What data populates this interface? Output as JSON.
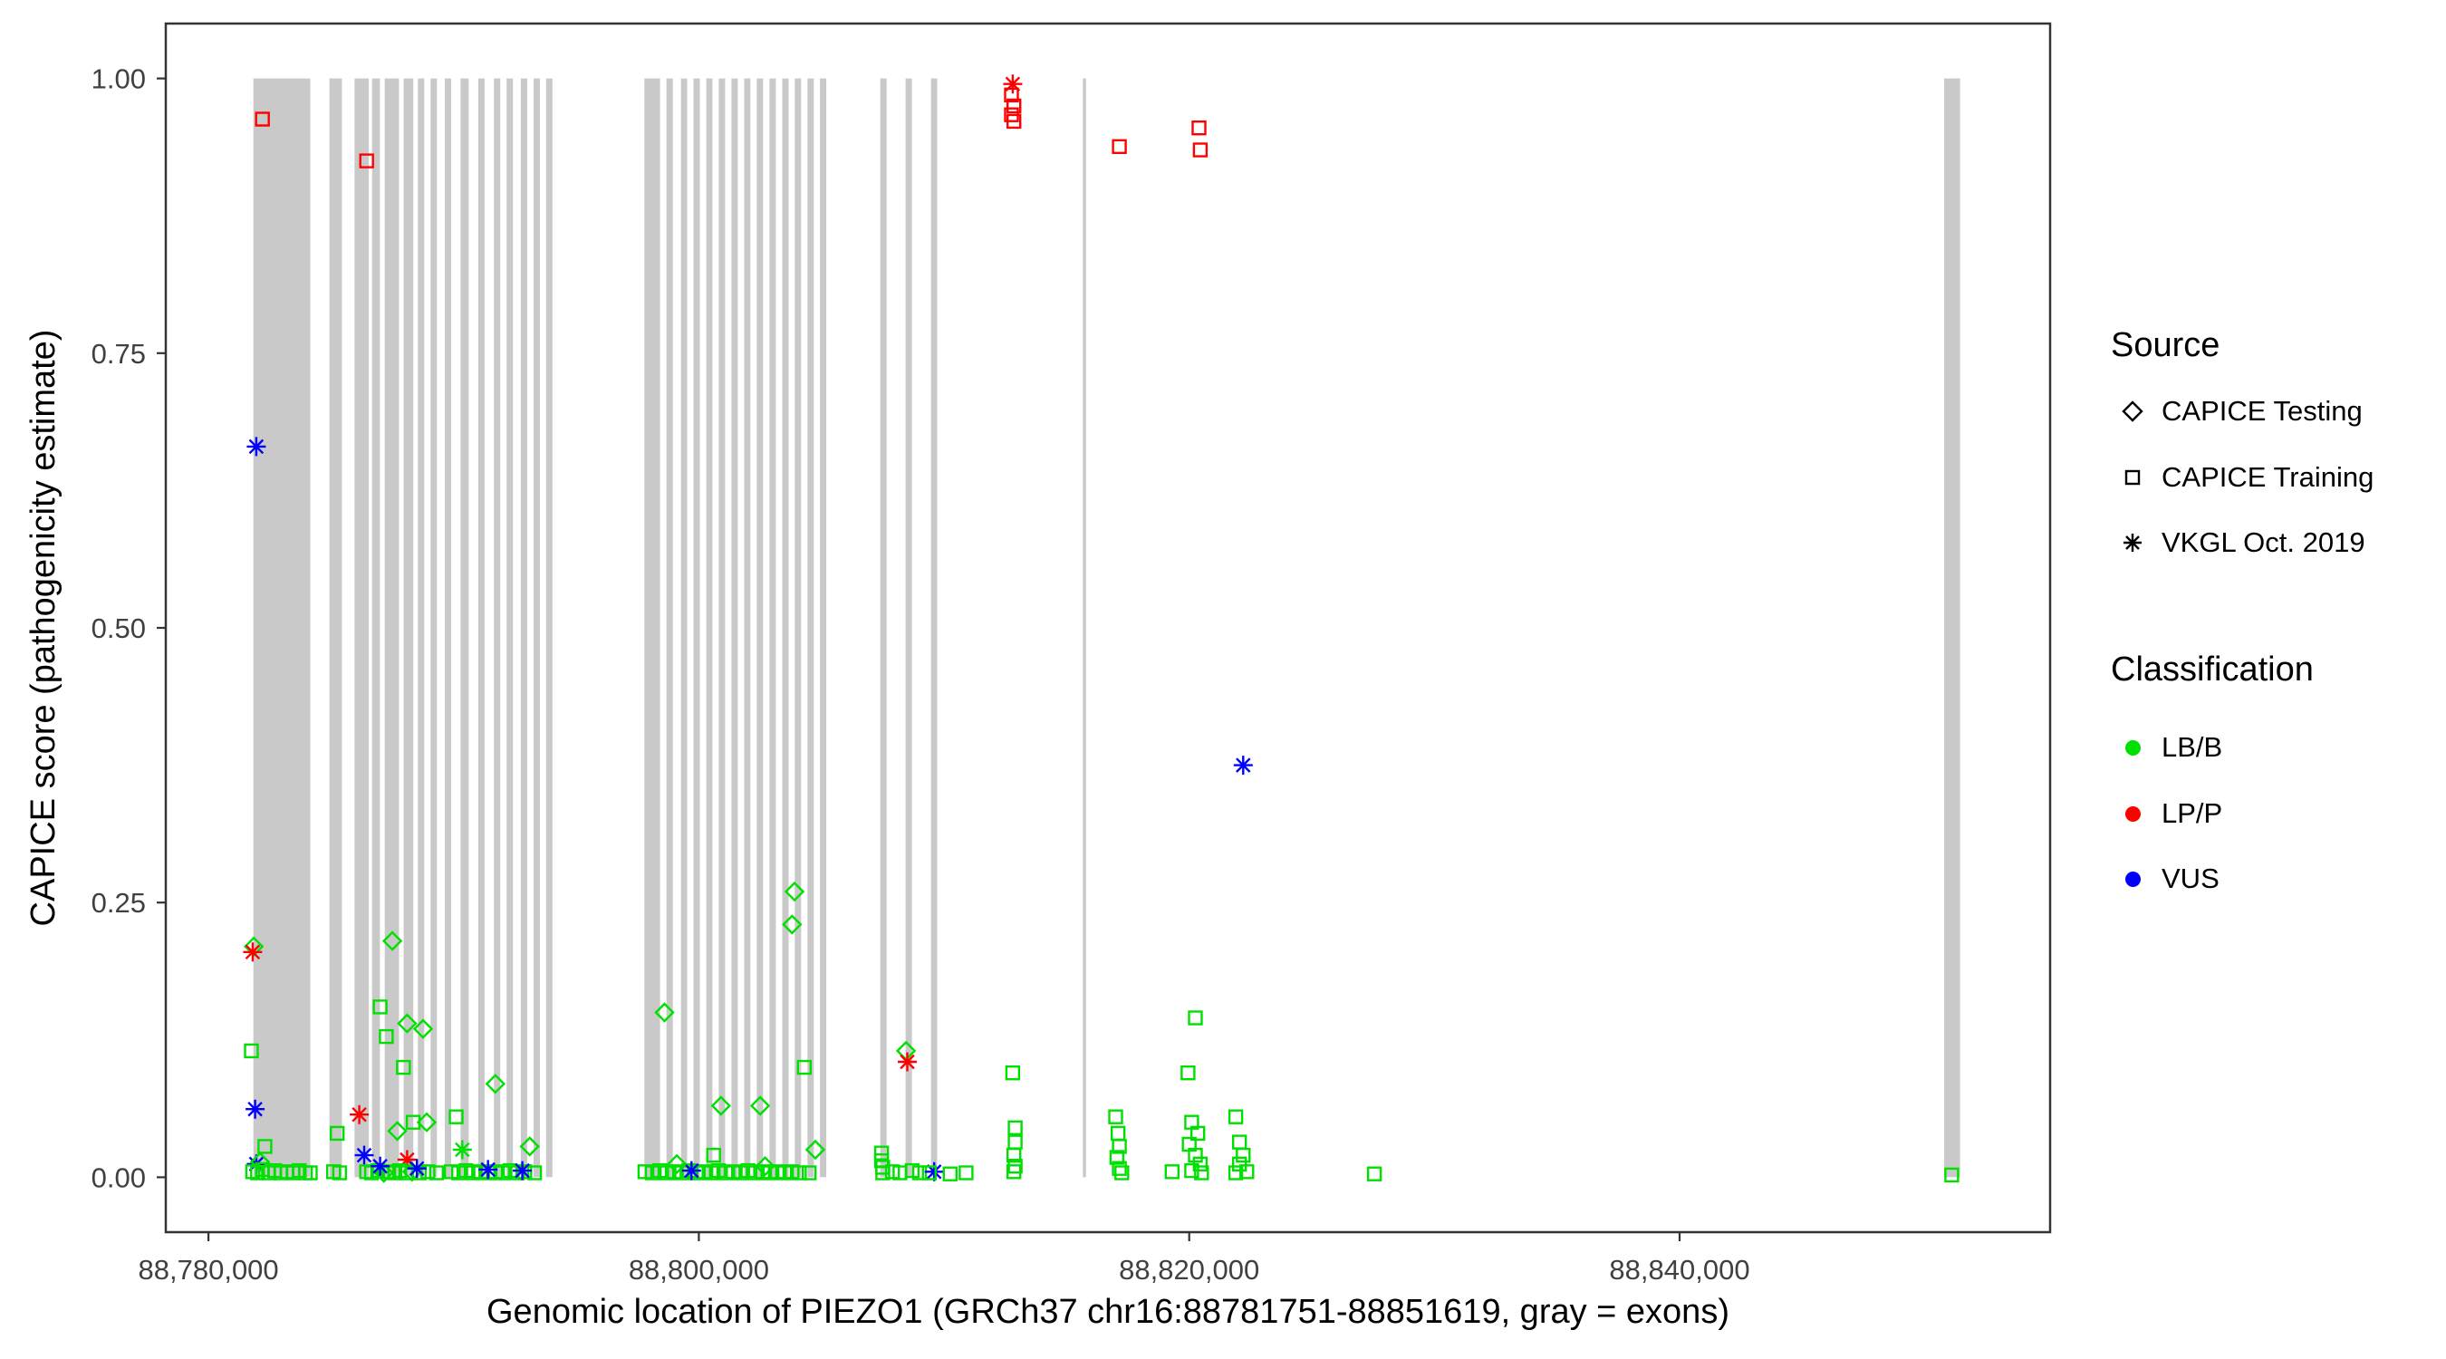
{
  "chart_data": {
    "type": "scatter",
    "title": "",
    "grid": false,
    "legend_position": "right",
    "x_axis": {
      "title": "Genomic location of PIEZO1 (GRCh37 chr16:88781751-88851619, gray = exons)",
      "domain": [
        88778258,
        88855112
      ],
      "ticks": [
        {
          "v": 88780000,
          "label": "88,780,000"
        },
        {
          "v": 88800000,
          "label": "88,800,000"
        },
        {
          "v": 88820000,
          "label": "88,820,000"
        },
        {
          "v": 88840000,
          "label": "88,840,000"
        }
      ]
    },
    "y_axis": {
      "title": "CAPICE score (pathogenicity estimate)",
      "domain": [
        -0.05,
        1.05
      ],
      "ticks": [
        {
          "v": 0,
          "label": "0.00"
        },
        {
          "v": 0.25,
          "label": "0.25"
        },
        {
          "v": 0.5,
          "label": "0.50"
        },
        {
          "v": 0.75,
          "label": "0.75"
        },
        {
          "v": 1,
          "label": "1.00"
        }
      ]
    },
    "legend": {
      "source": {
        "title": "Source",
        "items": [
          {
            "label": "CAPICE Testing",
            "shape": "diamond"
          },
          {
            "label": "CAPICE Training",
            "shape": "square"
          },
          {
            "label": "VKGL Oct. 2019",
            "shape": "asterisk"
          }
        ]
      },
      "classification": {
        "title": "Classification",
        "items": [
          {
            "label": "LB/B",
            "color": "#00E000"
          },
          {
            "label": "LP/P",
            "color": "#FF0000"
          },
          {
            "label": "VUS",
            "color": "#0000FF"
          }
        ]
      }
    },
    "colors": {
      "exon": "#C9C9C9",
      "panel_border": "#333333",
      "axis_text": "#404040",
      "classification": {
        "g": "#00E000",
        "r": "#FF0000",
        "b": "#0000FF"
      }
    },
    "point_format": "[genomic_position, capice_score, shape(d=diamond CAPICE Testing, s=square CAPICE Training, a=asterisk VKGL Oct. 2019), class(g=LB/B, r=LP/P, b=VUS)]",
    "points": [
      [
        88782200,
        0.963,
        "s",
        "r"
      ],
      [
        88781950,
        0.665,
        "a",
        "b"
      ],
      [
        88781850,
        0.21,
        "d",
        "g"
      ],
      [
        88781800,
        0.205,
        "a",
        "r"
      ],
      [
        88781750,
        0.115,
        "s",
        "g"
      ],
      [
        88781900,
        0.062,
        "a",
        "b"
      ],
      [
        88781950,
        0.012,
        "a",
        "b"
      ],
      [
        88781800,
        0.005,
        "s",
        "g"
      ],
      [
        88782000,
        0.004,
        "s",
        "g"
      ],
      [
        88782200,
        0.007,
        "s",
        "g"
      ],
      [
        88782450,
        0.004,
        "s",
        "g"
      ],
      [
        88782700,
        0.006,
        "s",
        "g"
      ],
      [
        88782950,
        0.004,
        "s",
        "g"
      ],
      [
        88783200,
        0.005,
        "s",
        "g"
      ],
      [
        88783450,
        0.004,
        "s",
        "g"
      ],
      [
        88783700,
        0.006,
        "s",
        "g"
      ],
      [
        88783950,
        0.004,
        "s",
        "g"
      ],
      [
        88782300,
        0.028,
        "s",
        "g"
      ],
      [
        88782100,
        0.014,
        "d",
        "g"
      ],
      [
        88784150,
        0.004,
        "s",
        "g"
      ],
      [
        88785100,
        0.005,
        "s",
        "g"
      ],
      [
        88785350,
        0.004,
        "s",
        "g"
      ],
      [
        88785250,
        0.04,
        "s",
        "g"
      ],
      [
        88786450,
        0.925,
        "s",
        "r"
      ],
      [
        88786150,
        0.057,
        "a",
        "r"
      ],
      [
        88786350,
        0.02,
        "a",
        "b"
      ],
      [
        88787000,
        0.155,
        "s",
        "g"
      ],
      [
        88787250,
        0.128,
        "s",
        "g"
      ],
      [
        88787500,
        0.215,
        "d",
        "g"
      ],
      [
        88787950,
        0.1,
        "s",
        "g"
      ],
      [
        88788100,
        0.14,
        "d",
        "g"
      ],
      [
        88788750,
        0.135,
        "d",
        "g"
      ],
      [
        88788100,
        0.016,
        "a",
        "r"
      ],
      [
        88787700,
        0.042,
        "d",
        "g"
      ],
      [
        88788900,
        0.05,
        "d",
        "g"
      ],
      [
        88788350,
        0.05,
        "s",
        "g"
      ],
      [
        88786450,
        0.005,
        "s",
        "g"
      ],
      [
        88786650,
        0.004,
        "s",
        "g"
      ],
      [
        88786900,
        0.006,
        "s",
        "g"
      ],
      [
        88787150,
        0.004,
        "d",
        "g"
      ],
      [
        88787350,
        0.005,
        "s",
        "g"
      ],
      [
        88787600,
        0.004,
        "s",
        "g"
      ],
      [
        88787800,
        0.006,
        "s",
        "g"
      ],
      [
        88788050,
        0.004,
        "s",
        "g"
      ],
      [
        88788300,
        0.005,
        "d",
        "g"
      ],
      [
        88788600,
        0.004,
        "s",
        "g"
      ],
      [
        88788950,
        0.005,
        "s",
        "g"
      ],
      [
        88789300,
        0.004,
        "s",
        "g"
      ],
      [
        88787000,
        0.01,
        "a",
        "b"
      ],
      [
        88788500,
        0.008,
        "a",
        "b"
      ],
      [
        88790100,
        0.055,
        "s",
        "g"
      ],
      [
        88790350,
        0.025,
        "a",
        "g"
      ],
      [
        88791700,
        0.085,
        "d",
        "g"
      ],
      [
        88789900,
        0.005,
        "s",
        "g"
      ],
      [
        88790200,
        0.004,
        "s",
        "g"
      ],
      [
        88790500,
        0.006,
        "s",
        "g"
      ],
      [
        88790800,
        0.004,
        "s",
        "g"
      ],
      [
        88791100,
        0.005,
        "s",
        "g"
      ],
      [
        88791400,
        0.004,
        "s",
        "g"
      ],
      [
        88791700,
        0.005,
        "s",
        "g"
      ],
      [
        88792000,
        0.004,
        "s",
        "g"
      ],
      [
        88792300,
        0.006,
        "s",
        "g"
      ],
      [
        88792600,
        0.004,
        "s",
        "g"
      ],
      [
        88792900,
        0.005,
        "s",
        "g"
      ],
      [
        88793300,
        0.004,
        "s",
        "g"
      ],
      [
        88791400,
        0.007,
        "a",
        "b"
      ],
      [
        88792800,
        0.006,
        "a",
        "b"
      ],
      [
        88793100,
        0.028,
        "d",
        "g"
      ],
      [
        88798600,
        0.15,
        "d",
        "g"
      ],
      [
        88800900,
        0.065,
        "d",
        "g"
      ],
      [
        88802500,
        0.065,
        "d",
        "g"
      ],
      [
        88803900,
        0.26,
        "d",
        "g"
      ],
      [
        88803800,
        0.23,
        "d",
        "g"
      ],
      [
        88804300,
        0.1,
        "s",
        "g"
      ],
      [
        88804750,
        0.025,
        "d",
        "g"
      ],
      [
        88797800,
        0.005,
        "s",
        "g"
      ],
      [
        88798100,
        0.004,
        "s",
        "g"
      ],
      [
        88798400,
        0.006,
        "s",
        "g"
      ],
      [
        88798700,
        0.004,
        "s",
        "g"
      ],
      [
        88799000,
        0.005,
        "s",
        "g"
      ],
      [
        88799300,
        0.004,
        "s",
        "g"
      ],
      [
        88799600,
        0.006,
        "s",
        "g"
      ],
      [
        88799900,
        0.004,
        "s",
        "g"
      ],
      [
        88800200,
        0.005,
        "s",
        "g"
      ],
      [
        88800500,
        0.004,
        "s",
        "g"
      ],
      [
        88800800,
        0.006,
        "s",
        "g"
      ],
      [
        88801100,
        0.004,
        "s",
        "g"
      ],
      [
        88801400,
        0.005,
        "s",
        "g"
      ],
      [
        88801700,
        0.004,
        "s",
        "g"
      ],
      [
        88802000,
        0.006,
        "s",
        "g"
      ],
      [
        88802300,
        0.004,
        "s",
        "g"
      ],
      [
        88802600,
        0.005,
        "s",
        "g"
      ],
      [
        88802900,
        0.004,
        "s",
        "g"
      ],
      [
        88803200,
        0.005,
        "s",
        "g"
      ],
      [
        88803500,
        0.004,
        "s",
        "g"
      ],
      [
        88803800,
        0.005,
        "s",
        "g"
      ],
      [
        88804100,
        0.004,
        "s",
        "g"
      ],
      [
        88799700,
        0.006,
        "a",
        "b"
      ],
      [
        88800600,
        0.02,
        "s",
        "g"
      ],
      [
        88799100,
        0.012,
        "d",
        "g"
      ],
      [
        88802700,
        0.01,
        "d",
        "g"
      ],
      [
        88804500,
        0.004,
        "s",
        "g"
      ],
      [
        88807450,
        0.022,
        "s",
        "g"
      ],
      [
        88807450,
        0.015,
        "s",
        "g"
      ],
      [
        88807500,
        0.009,
        "s",
        "g"
      ],
      [
        88807500,
        0.004,
        "s",
        "g"
      ],
      [
        88808450,
        0.115,
        "d",
        "g"
      ],
      [
        88808500,
        0.105,
        "a",
        "r"
      ],
      [
        88807900,
        0.005,
        "s",
        "g"
      ],
      [
        88808200,
        0.004,
        "s",
        "g"
      ],
      [
        88808700,
        0.006,
        "s",
        "g"
      ],
      [
        88809000,
        0.004,
        "s",
        "g"
      ],
      [
        88809600,
        0.005,
        "a",
        "b"
      ],
      [
        88809400,
        0.004,
        "s",
        "g"
      ],
      [
        88810250,
        0.003,
        "s",
        "g"
      ],
      [
        88810900,
        0.004,
        "s",
        "g"
      ],
      [
        88812800,
        0.995,
        "a",
        "r"
      ],
      [
        88812750,
        0.985,
        "s",
        "r"
      ],
      [
        88812850,
        0.975,
        "s",
        "r"
      ],
      [
        88812750,
        0.967,
        "s",
        "r"
      ],
      [
        88812850,
        0.961,
        "s",
        "r"
      ],
      [
        88812800,
        0.095,
        "s",
        "g"
      ],
      [
        88812900,
        0.045,
        "s",
        "g"
      ],
      [
        88812900,
        0.032,
        "s",
        "g"
      ],
      [
        88812850,
        0.02,
        "s",
        "g"
      ],
      [
        88812900,
        0.01,
        "s",
        "g"
      ],
      [
        88812850,
        0.005,
        "s",
        "g"
      ],
      [
        88817150,
        0.938,
        "s",
        "r"
      ],
      [
        88817000,
        0.055,
        "s",
        "g"
      ],
      [
        88817100,
        0.04,
        "s",
        "g"
      ],
      [
        88817150,
        0.028,
        "s",
        "g"
      ],
      [
        88817050,
        0.018,
        "s",
        "g"
      ],
      [
        88817150,
        0.008,
        "s",
        "g"
      ],
      [
        88817250,
        0.004,
        "s",
        "g"
      ],
      [
        88820400,
        0.955,
        "s",
        "r"
      ],
      [
        88820450,
        0.935,
        "s",
        "r"
      ],
      [
        88820250,
        0.145,
        "s",
        "g"
      ],
      [
        88819950,
        0.095,
        "s",
        "g"
      ],
      [
        88820100,
        0.05,
        "s",
        "g"
      ],
      [
        88820350,
        0.04,
        "s",
        "g"
      ],
      [
        88820000,
        0.03,
        "s",
        "g"
      ],
      [
        88820250,
        0.02,
        "s",
        "g"
      ],
      [
        88820450,
        0.012,
        "s",
        "g"
      ],
      [
        88820100,
        0.006,
        "s",
        "g"
      ],
      [
        88820500,
        0.004,
        "s",
        "g"
      ],
      [
        88819300,
        0.005,
        "s",
        "g"
      ],
      [
        88822200,
        0.375,
        "a",
        "b"
      ],
      [
        88821900,
        0.055,
        "s",
        "g"
      ],
      [
        88822050,
        0.032,
        "s",
        "g"
      ],
      [
        88822200,
        0.02,
        "s",
        "g"
      ],
      [
        88822050,
        0.012,
        "s",
        "g"
      ],
      [
        88822350,
        0.005,
        "s",
        "g"
      ],
      [
        88821900,
        0.004,
        "s",
        "g"
      ],
      [
        88827550,
        0.003,
        "s",
        "g"
      ],
      [
        88851100,
        0.002,
        "s",
        "g"
      ]
    ],
    "exons": [
      [
        88781830,
        88784150
      ],
      [
        88784930,
        88785440
      ],
      [
        88785960,
        88786540
      ],
      [
        88786670,
        88786990
      ],
      [
        88787190,
        88787770
      ],
      [
        88787960,
        88788350
      ],
      [
        88788540,
        88788800
      ],
      [
        88789060,
        88789320
      ],
      [
        88789640,
        88789900
      ],
      [
        88790280,
        88790610
      ],
      [
        88791000,
        88791260
      ],
      [
        88791640,
        88791900
      ],
      [
        88792160,
        88792420
      ],
      [
        88792740,
        88793000
      ],
      [
        88793260,
        88793520
      ],
      [
        88793770,
        88794030
      ],
      [
        88797780,
        88798420
      ],
      [
        88798680,
        88798940
      ],
      [
        88799270,
        88799520
      ],
      [
        88799780,
        88800040
      ],
      [
        88800300,
        88800550
      ],
      [
        88800810,
        88801070
      ],
      [
        88801330,
        88801590
      ],
      [
        88801850,
        88802100
      ],
      [
        88802360,
        88802620
      ],
      [
        88802880,
        88803140
      ],
      [
        88803400,
        88803660
      ],
      [
        88803910,
        88804170
      ],
      [
        88804430,
        88804690
      ],
      [
        88804940,
        88805200
      ],
      [
        88807400,
        88807660
      ],
      [
        88808430,
        88808690
      ],
      [
        88809470,
        88809720
      ],
      [
        88815660,
        88815790
      ],
      [
        88850790,
        88851440
      ]
    ]
  }
}
